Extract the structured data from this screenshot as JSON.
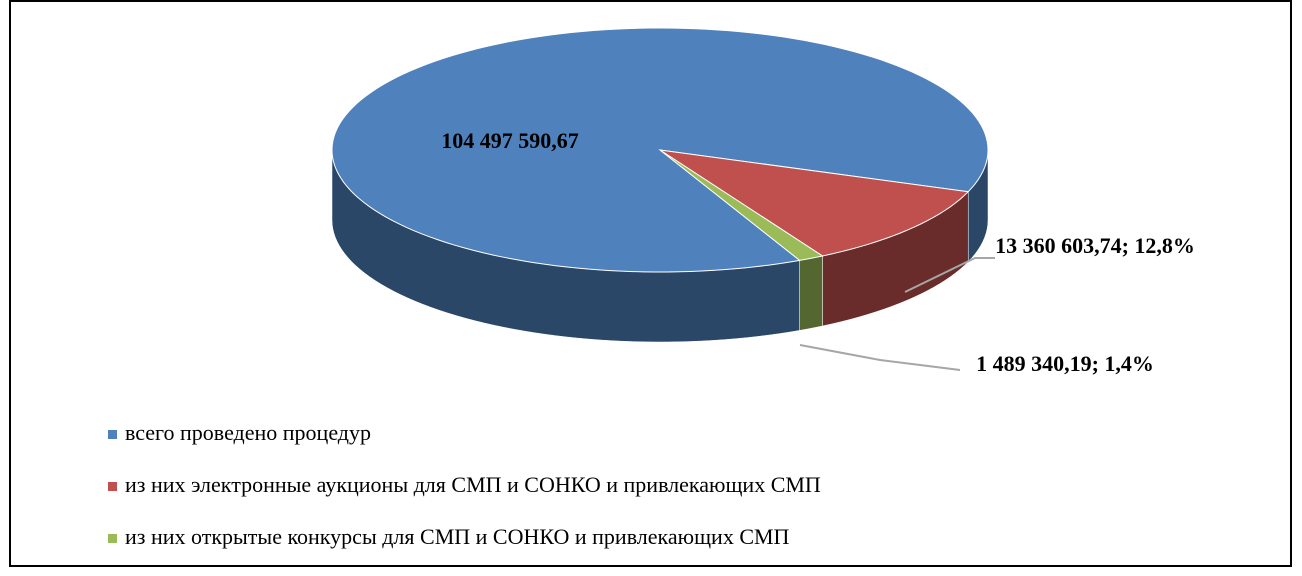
{
  "chart_data": {
    "type": "pie",
    "categories": [
      "всего проведено процедур",
      "из них электронные аукционы для СМП и СОНКО и привлекающих СМП",
      "из них открытые конкурсы для СМП и СОНКО и привлекающих СМП"
    ],
    "values": [
      104497590.67,
      13360603.74,
      1489340.19
    ],
    "value_labels": [
      "104 497 590,67",
      "13 360 603,74; 12,8%",
      "1 489 340,19; 1,4%"
    ],
    "colors": [
      "#4f81bd",
      "#c0504d",
      "#9bbb59"
    ],
    "legend": "bottom"
  }
}
